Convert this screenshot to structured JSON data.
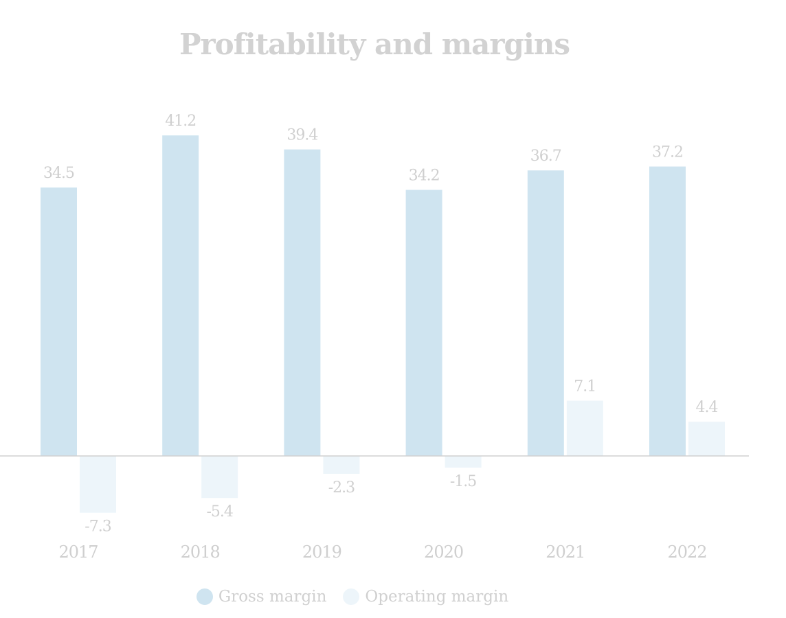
{
  "chart_data": {
    "type": "bar",
    "title": "Profitability and margins",
    "xlabel": "",
    "ylabel": "",
    "categories": [
      "2017",
      "2018",
      "2019",
      "2020",
      "2021",
      "2022"
    ],
    "series": [
      {
        "name": "Gross margin",
        "color": "#cfe4f0",
        "values": [
          34.5,
          41.2,
          39.4,
          34.2,
          36.7,
          37.2
        ]
      },
      {
        "name": "Operating margin",
        "color": "#edf5fa",
        "values": [
          -7.3,
          -5.4,
          -2.3,
          -1.5,
          7.1,
          4.4
        ]
      }
    ],
    "value_labels": {
      "Gross margin": [
        "34.5",
        "41.2",
        "39.4",
        "34.2",
        "36.7",
        "37.2"
      ],
      "Operating margin": [
        "-7.3",
        "-5.4",
        "-2.3",
        "-1.5",
        "7.1",
        "4.4"
      ]
    },
    "ylim": [
      -7.3,
      41.2
    ],
    "grid": false,
    "legend_position": "bottom-center",
    "colors": {
      "title": "#d2d2d2",
      "labels": "#cfcfcf",
      "axis": "#d0d0d0"
    }
  }
}
